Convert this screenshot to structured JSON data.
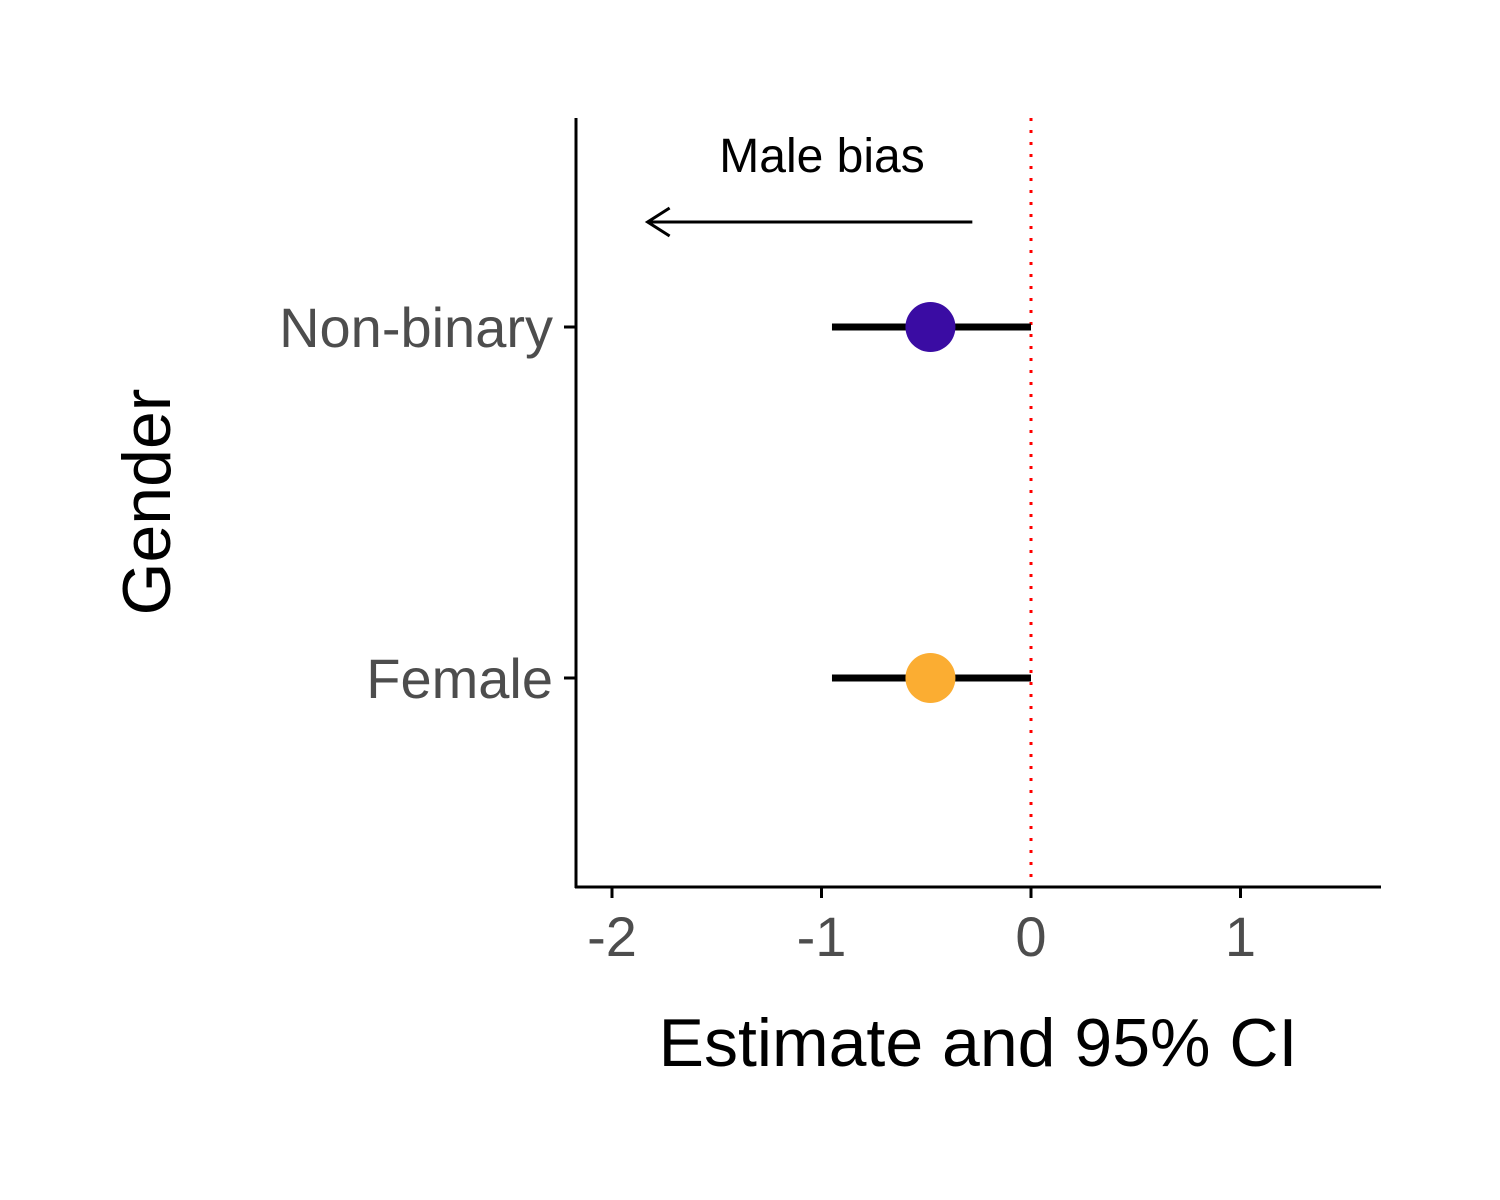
{
  "chart_data": {
    "type": "scatter",
    "title": "",
    "xlabel": "Estimate and 95% CI",
    "ylabel": "Gender",
    "xlim": [
      -2.17,
      1.68
    ],
    "xticks": [
      -2,
      -1,
      0,
      1
    ],
    "xtick_labels": [
      "-2",
      "-1",
      "0",
      "1"
    ],
    "categories": [
      "Female",
      "Non-binary"
    ],
    "points": [
      {
        "category": "Non-binary",
        "estimate": -0.48,
        "ci_low": -0.95,
        "ci_high": 0.0,
        "color": "#3a0ca3"
      },
      {
        "category": "Female",
        "estimate": -0.48,
        "ci_low": -0.95,
        "ci_high": 0.0,
        "color": "#fbad32"
      }
    ],
    "reference_line": {
      "x": 0,
      "style": "dotted",
      "color": "#ff0000"
    },
    "annotation": {
      "text": "Male bias",
      "arrow_from": -0.28,
      "arrow_to": -1.83,
      "direction": "left"
    },
    "grid": false,
    "legend": "none"
  }
}
